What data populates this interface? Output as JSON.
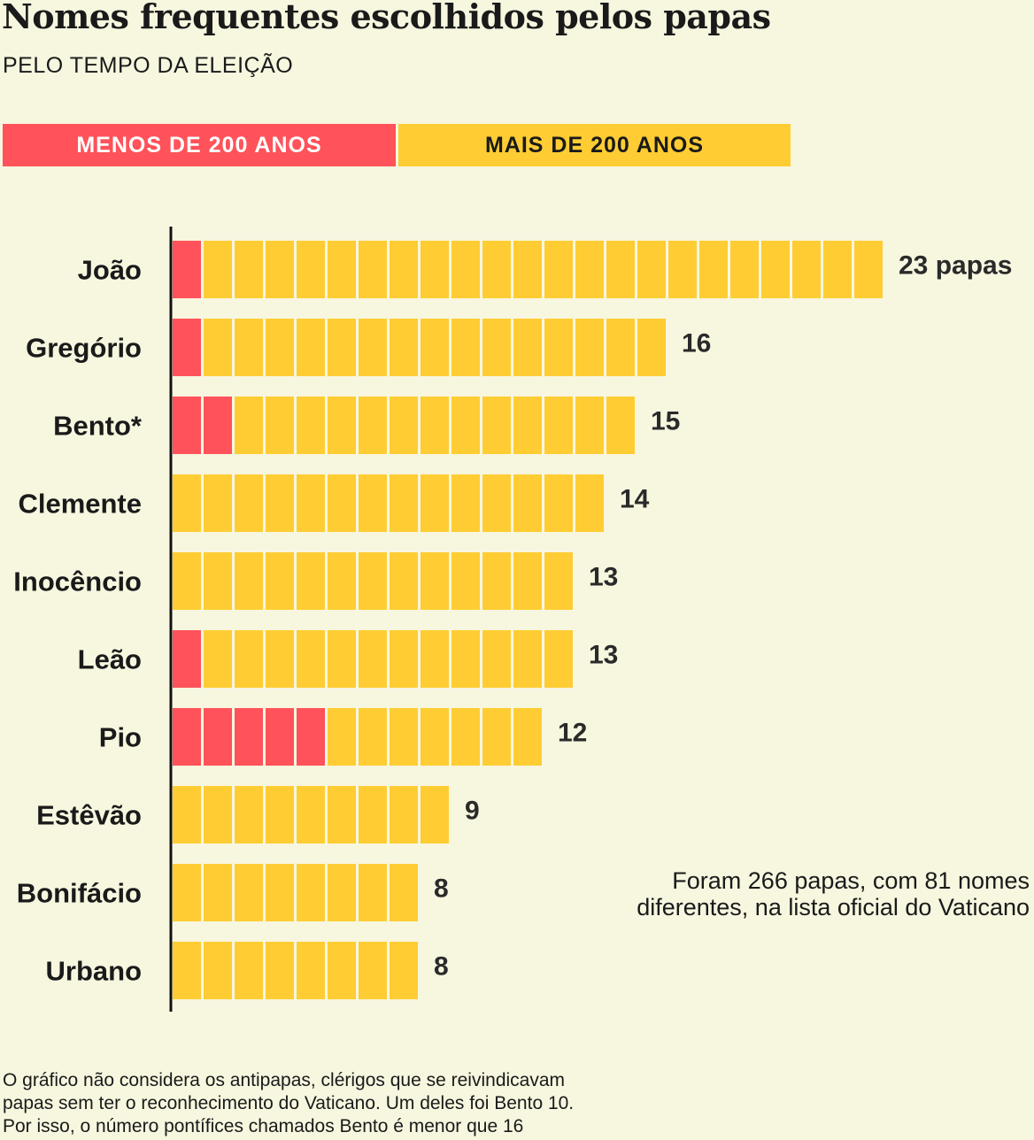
{
  "title": "Nomes frequentes escolhidos pelos papas",
  "subtitle": "PELO TEMPO DA ELEIÇÃO",
  "legend": {
    "recent": "MENOS DE 200 ANOS",
    "old": "MAIS DE 200 ANOS"
  },
  "colors": {
    "recent": "#ff525a",
    "old": "#ffcd33",
    "background": "#f7f6df",
    "axis": "#111111"
  },
  "chart_data": {
    "type": "bar",
    "stacked": true,
    "unit": "papas",
    "categories": [
      "João",
      "Gregório",
      "Bento*",
      "Clemente",
      "Inocêncio",
      "Leão",
      "Pio",
      "Estêvão",
      "Bonifácio",
      "Urbano"
    ],
    "series": [
      {
        "name": "MENOS DE 200 ANOS",
        "values": [
          1,
          1,
          2,
          0,
          0,
          1,
          5,
          0,
          0,
          0
        ]
      },
      {
        "name": "MAIS DE 200 ANOS",
        "values": [
          22,
          15,
          13,
          14,
          13,
          12,
          7,
          9,
          8,
          8
        ]
      }
    ],
    "data_labels": [
      "23 papas",
      "16",
      "15",
      "14",
      "13",
      "13",
      "12",
      "9",
      "8",
      "8"
    ],
    "legend_position": "top"
  },
  "note": {
    "line1": "Foram 266 papas, com 81 nomes",
    "line2": "diferentes, na lista oficial do Vaticano"
  },
  "footnote": {
    "line1": "O gráfico não considera os antipapas, clérigos que se reivindicavam",
    "line2": "papas sem ter o reconhecimento do Vaticano. Um deles foi Bento 10.",
    "line3": "Por isso, o número pontífices chamados Bento é menor que 16"
  }
}
